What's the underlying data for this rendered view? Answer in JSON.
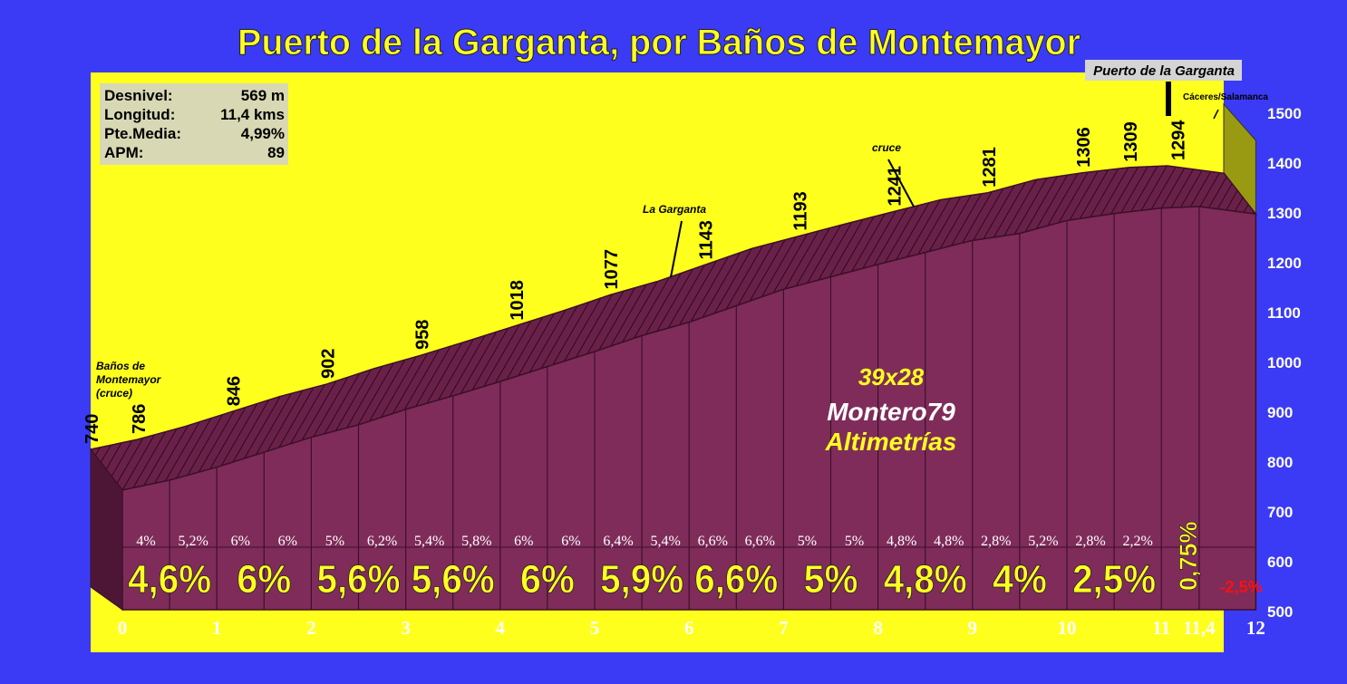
{
  "title": "Puerto de la Garganta, por Baños de Montemayor",
  "stats": [
    {
      "label": "Desnivel:",
      "value": "569 m"
    },
    {
      "label": "Longitud:",
      "value": "11,4 kms"
    },
    {
      "label": "Pte.Media:",
      "value": "4,99%"
    },
    {
      "label": "APM:",
      "value": "89"
    }
  ],
  "summit_label": "Puerto de la Garganta",
  "landmarks": [
    {
      "text": "Baños de Montemayor (cruce)",
      "lines": [
        "Baños de",
        "Montemayor",
        "(cruce)"
      ],
      "km": 0
    },
    {
      "text": "La Garganta",
      "km": 5.8
    },
    {
      "text": "cruce",
      "km": 8.35
    },
    {
      "text": "Cáceres/Salamanca",
      "km": 11.5
    }
  ],
  "ratio": "39x28",
  "author": "Montero79",
  "credit": "Altimetrías",
  "colors": {
    "background": "#3b3bf5",
    "sky": "#ffff1e",
    "profile_fill": "#7f2c5a",
    "profile_edge": "#3d1029",
    "label_yellow": "#ffff22",
    "negative_red": "#ff1010"
  },
  "chart_data": {
    "type": "area",
    "xlabel": "",
    "ylabel": "",
    "ylim": [
      500,
      1500
    ],
    "y_ticks": [
      "500",
      "600",
      "700",
      "800",
      "900",
      "1000",
      "1100",
      "1200",
      "1300",
      "1400",
      "1500"
    ],
    "x_ticks": [
      {
        "km": 0,
        "label": "0"
      },
      {
        "km": 1,
        "label": "1"
      },
      {
        "km": 2,
        "label": "2"
      },
      {
        "km": 3,
        "label": "3"
      },
      {
        "km": 4,
        "label": "4"
      },
      {
        "km": 5,
        "label": "5"
      },
      {
        "km": 6,
        "label": "6"
      },
      {
        "km": 7,
        "label": "7"
      },
      {
        "km": 8,
        "label": "8"
      },
      {
        "km": 9,
        "label": "9"
      },
      {
        "km": 10,
        "label": "10"
      },
      {
        "km": 11,
        "label": "11"
      },
      {
        "km": 11.4,
        "label": "11,4"
      },
      {
        "km": 12,
        "label": "12"
      }
    ],
    "profile": [
      {
        "km": 0,
        "alt": 740
      },
      {
        "km": 0.5,
        "alt": 760
      },
      {
        "km": 1,
        "alt": 786
      },
      {
        "km": 1.5,
        "alt": 816
      },
      {
        "km": 2,
        "alt": 846
      },
      {
        "km": 2.5,
        "alt": 871
      },
      {
        "km": 3,
        "alt": 902
      },
      {
        "km": 3.5,
        "alt": 929
      },
      {
        "km": 4,
        "alt": 958
      },
      {
        "km": 4.5,
        "alt": 988
      },
      {
        "km": 5,
        "alt": 1018
      },
      {
        "km": 5.5,
        "alt": 1050
      },
      {
        "km": 6,
        "alt": 1077
      },
      {
        "km": 6.5,
        "alt": 1110
      },
      {
        "km": 7,
        "alt": 1143
      },
      {
        "km": 7.5,
        "alt": 1168
      },
      {
        "km": 8,
        "alt": 1193
      },
      {
        "km": 8.5,
        "alt": 1217
      },
      {
        "km": 9,
        "alt": 1241
      },
      {
        "km": 9.5,
        "alt": 1255
      },
      {
        "km": 10,
        "alt": 1281
      },
      {
        "km": 10.5,
        "alt": 1295
      },
      {
        "km": 11,
        "alt": 1306
      },
      {
        "km": 11.4,
        "alt": 1309
      },
      {
        "km": 12,
        "alt": 1294
      }
    ],
    "altitude_labels": [
      {
        "km": 0,
        "label": "740"
      },
      {
        "km": 0.5,
        "label": "786"
      },
      {
        "km": 1.5,
        "label": "846"
      },
      {
        "km": 2.5,
        "label": "902"
      },
      {
        "km": 3.5,
        "label": "958"
      },
      {
        "km": 4.5,
        "label": "1018"
      },
      {
        "km": 5.5,
        "label": "1077"
      },
      {
        "km": 6.5,
        "label": "1143"
      },
      {
        "km": 7.5,
        "label": "1193"
      },
      {
        "km": 8.5,
        "label": "1241"
      },
      {
        "km": 9.5,
        "label": "1281"
      },
      {
        "km": 10.5,
        "label": "1306"
      },
      {
        "km": 11,
        "label": "1309"
      },
      {
        "km": 11.5,
        "label": "1294"
      }
    ],
    "half_km_gradients": [
      {
        "km": 0.25,
        "label": "4%"
      },
      {
        "km": 0.75,
        "label": "5,2%"
      },
      {
        "km": 1.25,
        "label": "6%"
      },
      {
        "km": 1.75,
        "label": "6%"
      },
      {
        "km": 2.25,
        "label": "5%"
      },
      {
        "km": 2.75,
        "label": "6,2%"
      },
      {
        "km": 3.25,
        "label": "5,4%"
      },
      {
        "km": 3.75,
        "label": "5,8%"
      },
      {
        "km": 4.25,
        "label": "6%"
      },
      {
        "km": 4.75,
        "label": "6%"
      },
      {
        "km": 5.25,
        "label": "6,4%"
      },
      {
        "km": 5.75,
        "label": "5,4%"
      },
      {
        "km": 6.25,
        "label": "6,6%"
      },
      {
        "km": 6.75,
        "label": "6,6%"
      },
      {
        "km": 7.25,
        "label": "5%"
      },
      {
        "km": 7.75,
        "label": "5%"
      },
      {
        "km": 8.25,
        "label": "4,8%"
      },
      {
        "km": 8.75,
        "label": "4,8%"
      },
      {
        "km": 9.25,
        "label": "2,8%"
      },
      {
        "km": 9.75,
        "label": "5,2%"
      },
      {
        "km": 10.25,
        "label": "2,8%"
      },
      {
        "km": 10.75,
        "label": "2,2%"
      }
    ],
    "km_gradients": [
      {
        "km": 0.5,
        "label": "4,6%"
      },
      {
        "km": 1.5,
        "label": "6%"
      },
      {
        "km": 2.5,
        "label": "5,6%"
      },
      {
        "km": 3.5,
        "label": "5,6%"
      },
      {
        "km": 4.5,
        "label": "6%"
      },
      {
        "km": 5.5,
        "label": "5,9%"
      },
      {
        "km": 6.5,
        "label": "6,6%"
      },
      {
        "km": 7.5,
        "label": "5%"
      },
      {
        "km": 8.5,
        "label": "4,8%"
      },
      {
        "km": 9.5,
        "label": "4%"
      },
      {
        "km": 10.5,
        "label": "2,5%"
      },
      {
        "km": 11.2,
        "label": "0,75%"
      },
      {
        "km": 11.7,
        "label": "-2,5%"
      }
    ]
  }
}
